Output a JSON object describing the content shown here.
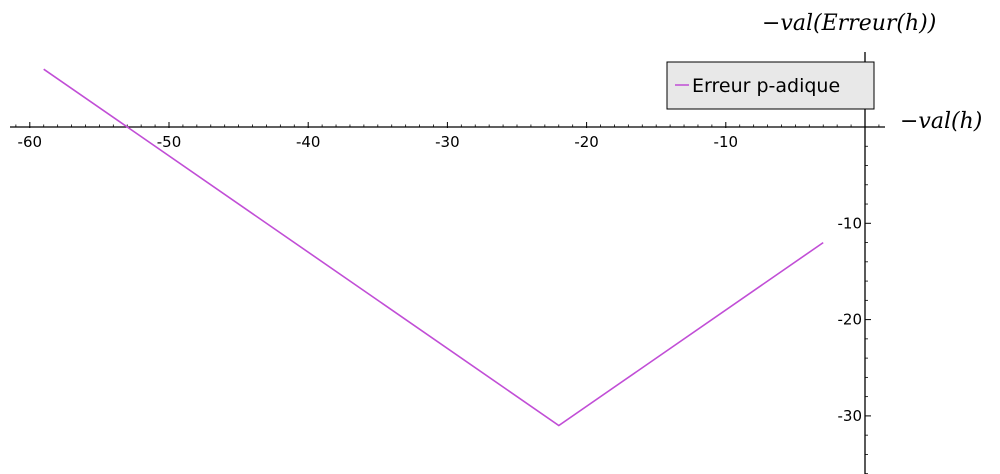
{
  "chart_data": {
    "type": "line",
    "title": "",
    "xlabel": "−val(h)",
    "ylabel": "−val(Erreur(h))",
    "xlim": [
      -61,
      2
    ],
    "ylim": [
      -36,
      6
    ],
    "xticks": [
      -60,
      -50,
      -40,
      -30,
      -20,
      -10
    ],
    "yticks": [
      -10,
      -20,
      -30
    ],
    "grid": false,
    "legend_position": "top-right",
    "series": [
      {
        "name": "Erreur p-adique",
        "color": "#c14ed6",
        "x": [
          -59,
          -22,
          -3
        ],
        "y": [
          6,
          -31,
          -12
        ]
      }
    ]
  }
}
